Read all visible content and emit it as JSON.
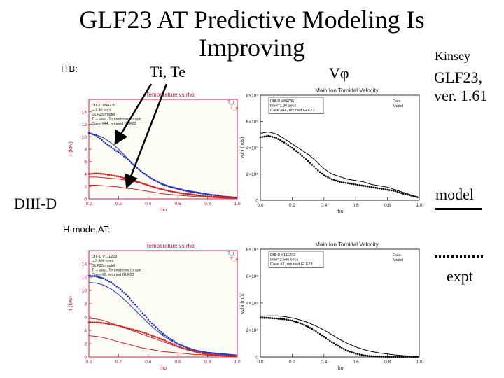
{
  "slide": {
    "title": "GLF23 AT Predictive Modeling Is Improving",
    "labels": {
      "itb": "ITB:",
      "hmode": "H-mode,AT:",
      "tite": "Ti, Te",
      "vphi": "Vφ",
      "kinsey": "Kinsey",
      "glf": "GLF23, ver. 1.61",
      "diiid": "DIII-D",
      "model": "model",
      "expt": "expt"
    },
    "colors": {
      "ti": "#2233bb",
      "te": "#cc2222",
      "plot_bg": "#fdfdf6",
      "plot_frame": "#cc2255",
      "text_red": "#bb1133"
    }
  },
  "chart_data": [
    {
      "type": "line",
      "title": "Temperature vs rho",
      "xlabel": "rho",
      "ylabel": "T (kev)",
      "xlim": [
        0.0,
        1.0
      ],
      "ylim": [
        0,
        16
      ],
      "xticks": [
        "0.0",
        "0.2",
        "0.4",
        "0.6",
        "0.8",
        "1.0"
      ],
      "yticks": [
        "0",
        "2",
        "4",
        "6",
        "8",
        "10",
        "12",
        "14"
      ],
      "annotations": [
        "DIII-D #84736",
        "t=1.30 secs",
        "GLF23 model",
        "Ti = data, Te model w/ torque",
        "Case #44, retuned GLF23"
      ],
      "legend": [
        "T_i",
        "T_e"
      ],
      "x": [
        0.0,
        0.05,
        0.1,
        0.15,
        0.2,
        0.25,
        0.3,
        0.35,
        0.4,
        0.45,
        0.5,
        0.55,
        0.6,
        0.65,
        0.7,
        0.75,
        0.8,
        0.85,
        0.9,
        0.95,
        1.0
      ],
      "series": [
        {
          "name": "Ti model",
          "color": "#2233bb",
          "style": "solid",
          "values": [
            10.5,
            10.3,
            9.8,
            9.0,
            8.0,
            6.8,
            5.5,
            4.4,
            3.6,
            2.9,
            2.4,
            2.0,
            1.7,
            1.4,
            1.2,
            1.0,
            0.8,
            0.6,
            0.4,
            0.3,
            0.2
          ]
        },
        {
          "name": "Ti expt",
          "color": "#2233bb",
          "style": "dotted",
          "values": [
            10.6,
            10.2,
            9.2,
            8.3,
            7.5,
            6.6,
            5.5,
            4.5,
            3.6,
            2.9,
            2.3,
            1.9,
            1.6,
            1.3,
            1.1,
            0.9,
            0.7,
            0.6,
            0.4,
            0.3,
            0.2
          ]
        },
        {
          "name": "Te model",
          "color": "#cc2222",
          "style": "solid",
          "values": [
            2.2,
            2.2,
            2.1,
            2.0,
            1.9,
            1.7,
            1.6,
            1.4,
            1.2,
            1.0,
            0.8,
            0.7,
            0.6,
            0.5,
            0.4,
            0.3,
            0.25,
            0.2,
            0.15,
            0.12,
            0.1
          ]
        },
        {
          "name": "Te expt",
          "color": "#cc2222",
          "style": "dotted",
          "values": [
            4.0,
            4.1,
            4.0,
            3.8,
            3.6,
            3.3,
            3.0,
            2.6,
            2.2,
            1.8,
            1.5,
            1.2,
            1.0,
            0.8,
            0.7,
            0.5,
            0.4,
            0.35,
            0.3,
            0.2,
            0.15
          ]
        },
        {
          "name": "Te model (2)",
          "color": "#cc2222",
          "style": "solid",
          "values": [
            3.5,
            3.5,
            3.4,
            3.3,
            3.2,
            3.0,
            2.8,
            2.5,
            2.1,
            1.8,
            1.5,
            1.2,
            1.0,
            0.8,
            0.6,
            0.5,
            0.35,
            0.25,
            0.2,
            0.15,
            0.1
          ]
        }
      ]
    },
    {
      "type": "line",
      "title": "Main Ion Toroidal Velocity",
      "xlabel": "rho",
      "ylabel": "vphi (m/s)",
      "xlim": [
        0.0,
        1.0
      ],
      "ylim": [
        0,
        800000
      ],
      "xticks": [
        "0.0",
        "0.2",
        "0.4",
        "0.6",
        "0.8",
        "1.0"
      ],
      "yticks": [
        "0",
        "2×10⁵",
        "4×10⁵",
        "6×10⁵",
        "8×10⁵"
      ],
      "annotations": [
        "DIII-D #84736",
        "time=1.30 secs",
        "Case #44, retuned GLF23"
      ],
      "legend": [
        "Data",
        "Model"
      ],
      "x": [
        0.0,
        0.05,
        0.1,
        0.15,
        0.2,
        0.25,
        0.3,
        0.35,
        0.4,
        0.45,
        0.5,
        0.55,
        0.6,
        0.65,
        0.7,
        0.75,
        0.8,
        0.85,
        0.9,
        0.95,
        1.0
      ],
      "series": [
        {
          "name": "Model",
          "color": "#000000",
          "style": "solid",
          "values": [
            510000,
            520000,
            505000,
            470000,
            430000,
            390000,
            350000,
            300000,
            240000,
            200000,
            180000,
            160000,
            150000,
            140000,
            120000,
            110000,
            100000,
            80000,
            60000,
            40000,
            20000
          ]
        },
        {
          "name": "Data",
          "color": "#000000",
          "style": "dotted",
          "values": [
            480000,
            490000,
            475000,
            440000,
            400000,
            350000,
            300000,
            240000,
            190000,
            160000,
            140000,
            130000,
            120000,
            110000,
            100000,
            90000,
            80000,
            70000,
            50000,
            35000,
            20000
          ]
        }
      ]
    },
    {
      "type": "line",
      "title": "Temperature vs rho",
      "xlabel": "rho",
      "ylabel": "T (kev)",
      "xlim": [
        0.0,
        1.0
      ],
      "ylim": [
        0,
        16
      ],
      "xticks": [
        "0.0",
        "0.2",
        "0.4",
        "0.6",
        "0.8",
        "1.0"
      ],
      "yticks": [
        "0",
        "2",
        "4",
        "6",
        "8",
        "10",
        "12",
        "14"
      ],
      "annotations": [
        "DIII-D #111203",
        "t=2.506 secs",
        "GLF23 model",
        "Ti = data, Te model w/ torque",
        "Case #2, retuned GLF23"
      ],
      "legend": [
        "T_i",
        "T_e"
      ],
      "x": [
        0.0,
        0.05,
        0.1,
        0.15,
        0.2,
        0.25,
        0.3,
        0.35,
        0.4,
        0.45,
        0.5,
        0.55,
        0.6,
        0.65,
        0.7,
        0.75,
        0.8,
        0.85,
        0.9,
        0.95,
        1.0
      ],
      "series": [
        {
          "name": "Ti model",
          "color": "#2233bb",
          "style": "solid",
          "values": [
            11.2,
            11.1,
            10.8,
            10.2,
            9.4,
            8.4,
            7.3,
            6.2,
            5.1,
            4.1,
            3.2,
            2.5,
            1.9,
            1.5,
            1.1,
            0.9,
            0.7,
            0.6,
            0.5,
            0.4,
            0.3
          ]
        },
        {
          "name": "Ti expt",
          "color": "#2233bb",
          "style": "dotted",
          "values": [
            12.2,
            12.1,
            11.8,
            11.2,
            10.4,
            9.4,
            8.2,
            6.9,
            5.6,
            4.5,
            3.5,
            2.7,
            2.0,
            1.5,
            1.1,
            0.8,
            0.6,
            0.5,
            0.4,
            0.3,
            0.2
          ]
        },
        {
          "name": "Te model",
          "color": "#cc2222",
          "style": "solid",
          "values": [
            3.2,
            3.1,
            2.9,
            2.6,
            2.3,
            2.0,
            1.7,
            1.4,
            1.2,
            1.0,
            0.8,
            0.7,
            0.6,
            0.5,
            0.4,
            0.35,
            0.3,
            0.25,
            0.2,
            0.15,
            0.1
          ]
        },
        {
          "name": "Te expt",
          "color": "#cc2222",
          "style": "dotted",
          "values": [
            5.2,
            5.2,
            5.1,
            4.9,
            4.7,
            4.4,
            4.1,
            3.8,
            3.4,
            3.0,
            2.6,
            2.1,
            1.6,
            1.2,
            0.9,
            0.6,
            0.4,
            0.3,
            0.2,
            0.15,
            0.1
          ]
        },
        {
          "name": "Te model (2)",
          "color": "#cc2222",
          "style": "solid",
          "values": [
            5.8,
            5.7,
            5.5,
            5.1,
            4.7,
            4.3,
            3.9,
            3.5,
            3.1,
            2.7,
            2.3,
            1.9,
            1.5,
            1.2,
            0.9,
            0.6,
            0.4,
            0.3,
            0.2,
            0.15,
            0.1
          ]
        }
      ]
    },
    {
      "type": "line",
      "title": "Main Ion Toroidal Velocity",
      "xlabel": "rho",
      "ylabel": "vphi (m/s)",
      "xlim": [
        0.0,
        1.0
      ],
      "ylim": [
        0,
        800000
      ],
      "xticks": [
        "0.0",
        "0.2",
        "0.4",
        "0.6",
        "0.8",
        "1.0"
      ],
      "yticks": [
        "0",
        "2×10⁵",
        "4×10⁵",
        "6×10⁵",
        "8×10⁵"
      ],
      "annotations": [
        "DIII-D #111203",
        "time=2.506 secs",
        "Case #2, retuned GLF23"
      ],
      "legend": [
        "Data",
        "Model"
      ],
      "x": [
        0.0,
        0.05,
        0.1,
        0.15,
        0.2,
        0.25,
        0.3,
        0.35,
        0.4,
        0.45,
        0.5,
        0.55,
        0.6,
        0.65,
        0.7,
        0.75,
        0.8,
        0.85,
        0.9,
        0.95,
        1.0
      ],
      "series": [
        {
          "name": "Model",
          "color": "#000000",
          "style": "solid",
          "values": [
            300000,
            305000,
            305000,
            300000,
            290000,
            275000,
            255000,
            230000,
            200000,
            165000,
            130000,
            100000,
            75000,
            55000,
            40000,
            30000,
            22000,
            15000,
            10000,
            7000,
            5000
          ]
        },
        {
          "name": "Data",
          "color": "#000000",
          "style": "dotted",
          "values": [
            290000,
            290000,
            285000,
            280000,
            270000,
            250000,
            225000,
            190000,
            150000,
            110000,
            75000,
            45000,
            25000,
            12000,
            6000,
            3000,
            2000,
            1500,
            1000,
            800,
            600
          ]
        }
      ]
    }
  ]
}
